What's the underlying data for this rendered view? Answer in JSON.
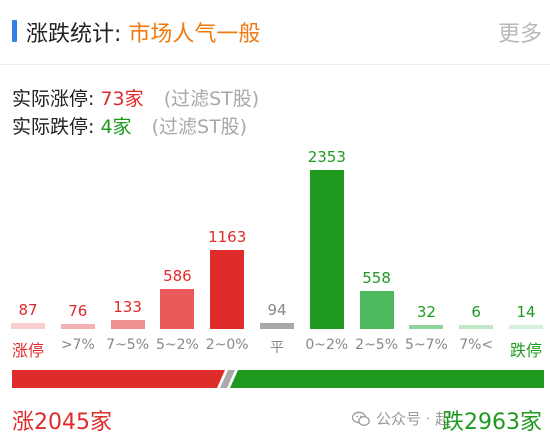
{
  "header": {
    "title": "涨跌统计:",
    "mood": "市场人气一般",
    "more_label": "更多"
  },
  "stats": {
    "limit_up_label": "实际涨停:",
    "limit_up_value": "73家",
    "limit_down_label": "实际跌停:",
    "limit_down_value": "4家",
    "note": "(过滤ST股)"
  },
  "chart_data": {
    "type": "bar",
    "categories": [
      "涨停",
      ">7%",
      "7~5%",
      "5~2%",
      "2~0%",
      "平",
      "0~2%",
      "2~5%",
      "5~7%",
      "7%<",
      "跌停"
    ],
    "values": [
      87,
      76,
      133,
      586,
      1163,
      94,
      2353,
      558,
      32,
      6,
      14
    ],
    "colors": [
      "#f7cfcf",
      "#f3b1b1",
      "#ef8f8f",
      "#ea5a5a",
      "#e02b2b",
      "#a8a8a8",
      "#1f9a1f",
      "#4cba5c",
      "#8fd49b",
      "#bfe6c6",
      "#d7efdc"
    ],
    "label_colors": [
      "#e02b2b",
      "#e02b2b",
      "#e02b2b",
      "#e02b2b",
      "#e02b2b",
      "#888888",
      "#1f9a1f",
      "#1f9a1f",
      "#1f9a1f",
      "#1f9a1f",
      "#1f9a1f"
    ],
    "ylim": [
      0,
      2353
    ]
  },
  "summary": {
    "rise_label": "涨2045家",
    "fall_label": "跌2963家",
    "rise_count": 2045,
    "fall_count": 2963
  },
  "watermark": {
    "text": "公众号 · 起"
  }
}
